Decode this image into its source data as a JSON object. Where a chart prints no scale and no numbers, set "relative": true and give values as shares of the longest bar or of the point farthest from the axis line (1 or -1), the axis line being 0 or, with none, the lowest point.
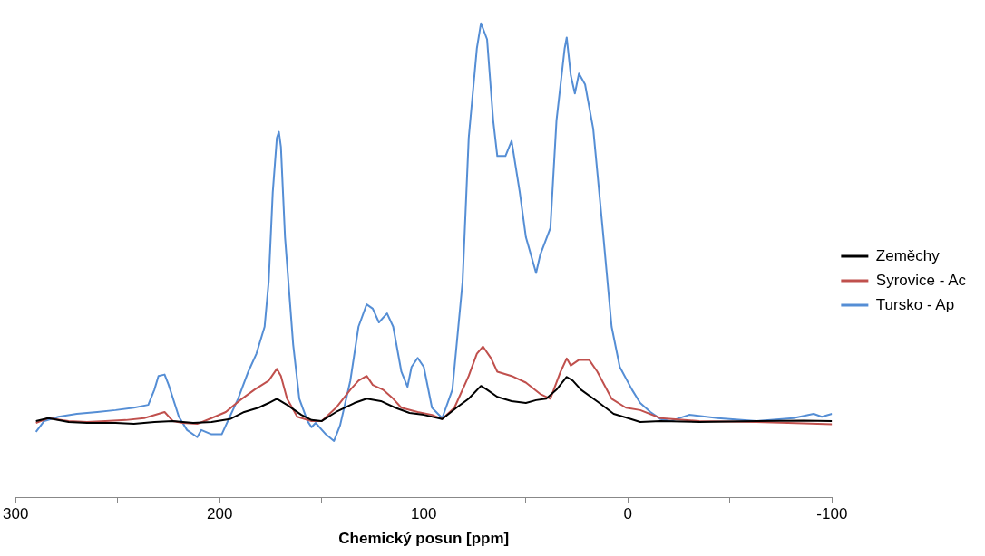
{
  "chart_data": {
    "type": "line",
    "xlabel": "Chemický posun [ppm]",
    "xlim": [
      300,
      -100
    ],
    "xticks": [
      300,
      {
        "value": 250,
        "label": null
      },
      200,
      {
        "value": 150,
        "label": null
      },
      100,
      {
        "value": 50,
        "label": null
      },
      0,
      {
        "value": -50,
        "label": null
      },
      -100
    ],
    "relative": true,
    "legend": "right",
    "marker": "none",
    "line_style": "solid",
    "series": [
      {
        "name": "Zeměchy",
        "color": "#000000",
        "x": [
          290,
          284,
          274,
          265,
          251,
          242,
          232,
          223,
          213,
          204,
          195,
          188,
          181,
          176,
          172,
          167,
          160,
          155,
          150,
          143,
          134,
          128,
          121,
          114,
          107,
          100,
          91,
          84,
          78,
          72,
          69,
          64,
          57,
          50,
          45,
          40,
          35,
          30,
          27,
          23,
          14,
          7,
          0,
          -6,
          -16,
          -35,
          -63,
          -86,
          -100
        ],
        "values": [
          0.161,
          0.167,
          0.159,
          0.157,
          0.157,
          0.155,
          0.159,
          0.161,
          0.157,
          0.159,
          0.165,
          0.18,
          0.189,
          0.199,
          0.208,
          0.195,
          0.174,
          0.163,
          0.161,
          0.18,
          0.199,
          0.208,
          0.203,
          0.189,
          0.178,
          0.174,
          0.165,
          0.189,
          0.208,
          0.235,
          0.227,
          0.212,
          0.203,
          0.199,
          0.205,
          0.208,
          0.227,
          0.254,
          0.246,
          0.227,
          0.199,
          0.176,
          0.167,
          0.159,
          0.161,
          0.159,
          0.161,
          0.162,
          0.161
        ]
      },
      {
        "name": "Syrovice - Ac",
        "color": "#c0504d",
        "x": [
          290,
          284,
          274,
          265,
          256,
          246,
          237,
          227,
          223,
          218,
          211,
          204,
          197,
          190,
          183,
          176,
          172,
          170,
          167,
          162,
          155,
          150,
          143,
          136,
          132,
          128,
          125,
          120,
          115,
          111,
          103,
          96,
          91,
          85,
          78,
          74,
          71,
          67,
          64,
          57,
          50,
          43,
          38,
          33,
          30,
          28,
          24,
          19,
          15,
          8,
          1,
          -6,
          -16,
          -35,
          -63,
          -86,
          -100
        ],
        "values": [
          0.157,
          0.167,
          0.161,
          0.159,
          0.161,
          0.163,
          0.167,
          0.18,
          0.161,
          0.157,
          0.155,
          0.167,
          0.18,
          0.205,
          0.227,
          0.246,
          0.271,
          0.256,
          0.208,
          0.17,
          0.161,
          0.161,
          0.189,
          0.227,
          0.246,
          0.256,
          0.237,
          0.227,
          0.208,
          0.189,
          0.18,
          0.174,
          0.165,
          0.189,
          0.256,
          0.303,
          0.318,
          0.293,
          0.265,
          0.256,
          0.242,
          0.218,
          0.208,
          0.265,
          0.293,
          0.278,
          0.29,
          0.29,
          0.265,
          0.208,
          0.189,
          0.184,
          0.167,
          0.161,
          0.159,
          0.156,
          0.154
        ]
      },
      {
        "name": "Tursko - Ap",
        "color": "#558ed5",
        "x": [
          290,
          286,
          279,
          270,
          260,
          251,
          242,
          235,
          232,
          230,
          227,
          225,
          220,
          216,
          211,
          209,
          204,
          199,
          196,
          191,
          186,
          182,
          178,
          176,
          174,
          172,
          171,
          170,
          168,
          164,
          161,
          157,
          155,
          153,
          148,
          144,
          141,
          136,
          132,
          128,
          125,
          122,
          118,
          115,
          111,
          108,
          106,
          103,
          100,
          96,
          91,
          86,
          81,
          78,
          74,
          72,
          69,
          66,
          64,
          60,
          57,
          53,
          50,
          45,
          43,
          38,
          35,
          31,
          30,
          28,
          26,
          24,
          21,
          17,
          12,
          8,
          4,
          -2,
          -6,
          -11,
          -16,
          -21,
          -30,
          -44,
          -63,
          -81,
          -91,
          -95,
          -100
        ],
        "values": [
          0.138,
          0.161,
          0.17,
          0.176,
          0.18,
          0.184,
          0.189,
          0.195,
          0.227,
          0.256,
          0.259,
          0.237,
          0.17,
          0.142,
          0.127,
          0.142,
          0.133,
          0.133,
          0.161,
          0.208,
          0.265,
          0.303,
          0.36,
          0.455,
          0.644,
          0.758,
          0.771,
          0.739,
          0.549,
          0.322,
          0.208,
          0.161,
          0.148,
          0.157,
          0.133,
          0.119,
          0.152,
          0.246,
          0.36,
          0.407,
          0.398,
          0.369,
          0.388,
          0.36,
          0.265,
          0.233,
          0.275,
          0.294,
          0.275,
          0.189,
          0.167,
          0.227,
          0.455,
          0.758,
          0.947,
          1.0,
          0.966,
          0.795,
          0.72,
          0.72,
          0.752,
          0.644,
          0.549,
          0.473,
          0.511,
          0.568,
          0.795,
          0.947,
          0.97,
          0.89,
          0.852,
          0.894,
          0.871,
          0.777,
          0.549,
          0.36,
          0.275,
          0.227,
          0.199,
          0.18,
          0.165,
          0.161,
          0.174,
          0.167,
          0.161,
          0.167,
          0.176,
          0.17,
          0.176
        ]
      }
    ]
  }
}
